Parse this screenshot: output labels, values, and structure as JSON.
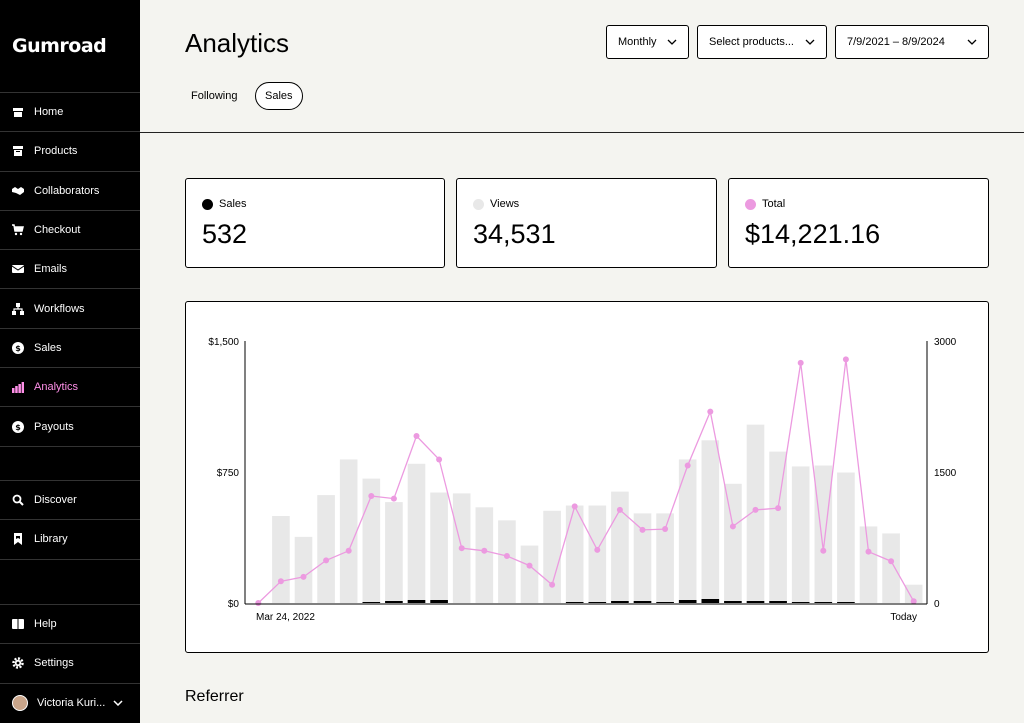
{
  "sidebar": {
    "logo": "Gumroad",
    "items": [
      {
        "label": "Home",
        "icon": "home-icon"
      },
      {
        "label": "Products",
        "icon": "archive-icon"
      },
      {
        "label": "Collaborators",
        "icon": "handshake-icon"
      },
      {
        "label": "Checkout",
        "icon": "cart-icon"
      },
      {
        "label": "Emails",
        "icon": "envelope-icon"
      },
      {
        "label": "Workflows",
        "icon": "workflow-icon"
      },
      {
        "label": "Sales",
        "icon": "dollar-circle-icon"
      },
      {
        "label": "Analytics",
        "icon": "bar-chart-icon"
      },
      {
        "label": "Payouts",
        "icon": "dollar-circle-icon"
      }
    ],
    "items2": [
      {
        "label": "Discover",
        "icon": "search-icon"
      },
      {
        "label": "Library",
        "icon": "bookmark-icon"
      }
    ],
    "items3": [
      {
        "label": "Help",
        "icon": "book-icon"
      },
      {
        "label": "Settings",
        "icon": "gear-icon"
      }
    ],
    "user": {
      "name": "Victoria Kuri..."
    }
  },
  "header": {
    "title": "Analytics",
    "tabs": [
      {
        "label": "Following"
      },
      {
        "label": "Sales"
      }
    ],
    "filters": {
      "period": "Monthly",
      "products": "Select products...",
      "date_range": "7/9/2021 – 8/9/2024"
    }
  },
  "stats": [
    {
      "label": "Sales",
      "value": "532",
      "color": "#000000"
    },
    {
      "label": "Views",
      "value": "34,531",
      "color": "#e8e8e8"
    },
    {
      "label": "Total",
      "value": "$14,221.16",
      "color": "#ec9ae0"
    }
  ],
  "chart_data": {
    "type": "bar",
    "y_left_ticks": [
      "$1,500",
      "$750",
      "$0"
    ],
    "y_right_ticks": [
      "3000",
      "1500",
      "0"
    ],
    "ylim_left": [
      0,
      1500
    ],
    "ylim_right": [
      0,
      3000
    ],
    "x_start_label": "Mar 24, 2022",
    "x_end_label": "Today",
    "colors": {
      "views": "#e8e8e8",
      "sales": "#000000",
      "total": "#ec9ae0"
    },
    "views": [
      0,
      1000,
      760,
      1240,
      1650,
      1430,
      1160,
      1600,
      1270,
      1260,
      1100,
      950,
      660,
      1060,
      1120,
      1120,
      1280,
      1030,
      1030,
      1650,
      1870,
      1370,
      2050,
      1740,
      1570,
      1580,
      1500,
      880,
      800,
      210
    ],
    "sales": [
      0,
      0,
      0,
      0,
      0,
      1,
      2,
      3,
      3,
      0,
      0,
      0,
      0,
      0,
      1,
      1,
      2,
      2,
      1,
      3,
      4,
      2,
      2,
      2,
      1,
      1,
      1,
      0,
      0,
      0
    ],
    "total": [
      0,
      125,
      150,
      245,
      300,
      615,
      600,
      960,
      825,
      315,
      300,
      270,
      215,
      105,
      555,
      305,
      535,
      420,
      425,
      790,
      1100,
      440,
      535,
      545,
      1380,
      300,
      1400,
      295,
      240,
      10
    ]
  },
  "referrer": {
    "title": "Referrer"
  }
}
